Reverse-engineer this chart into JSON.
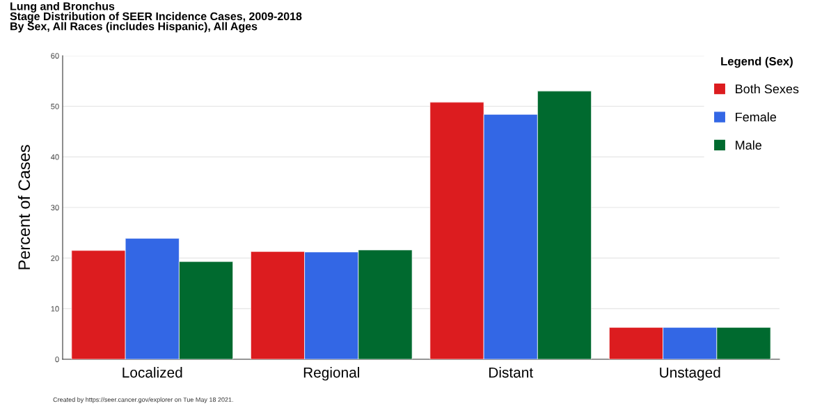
{
  "chart_data": {
    "type": "bar",
    "title": "Lung and Bronchus\nStage Distribution of SEER Incidence Cases, 2009-2018\nBy Sex, All Races (includes Hispanic), All Ages",
    "ylabel": "Percent of Cases",
    "legend_title": "Legend (Sex)",
    "categories": [
      "Localized",
      "Regional",
      "Distant",
      "Unstaged"
    ],
    "series": [
      {
        "name": "Both Sexes",
        "color": "#dc1c1f",
        "values": [
          21.5,
          21.3,
          50.8,
          6.3
        ]
      },
      {
        "name": "Female",
        "color": "#3367e5",
        "values": [
          23.9,
          21.2,
          48.4,
          6.3
        ]
      },
      {
        "name": "Male",
        "color": "#006a2f",
        "values": [
          19.3,
          21.6,
          53.0,
          6.3
        ]
      }
    ],
    "ylim": [
      0,
      60
    ],
    "yticks": [
      0,
      10,
      20,
      30,
      40,
      50,
      60
    ],
    "grid": "y",
    "legend": "top right",
    "annotations": [
      "Created by https://seer.cancer.gov/explorer on Tue May 18 2021."
    ]
  }
}
